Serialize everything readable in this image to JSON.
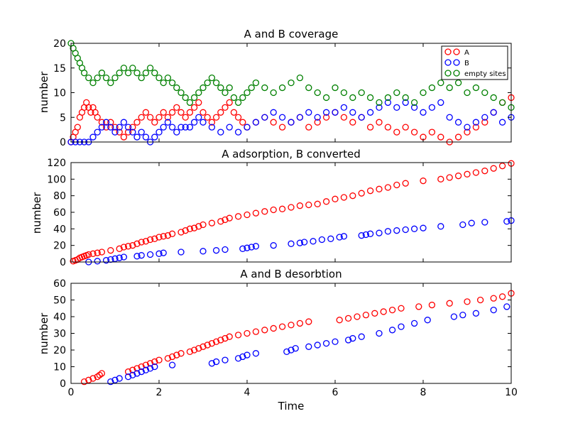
{
  "chart_data": [
    {
      "type": "scatter",
      "title": "A and B coverage",
      "xlabel": "",
      "ylabel": "number",
      "xlim": [
        0,
        10
      ],
      "ylim": [
        0,
        20
      ],
      "xticks": [],
      "yticks": [
        0,
        5,
        10,
        15,
        20
      ],
      "legend": "top-right",
      "series": [
        {
          "name": "A",
          "color": "#ff0000",
          "x": [
            0.0,
            0.05,
            0.1,
            0.15,
            0.2,
            0.25,
            0.3,
            0.35,
            0.4,
            0.45,
            0.5,
            0.55,
            0.6,
            0.7,
            0.8,
            0.9,
            1.0,
            1.1,
            1.2,
            1.3,
            1.4,
            1.5,
            1.6,
            1.7,
            1.8,
            1.9,
            2.0,
            2.1,
            2.2,
            2.3,
            2.4,
            2.5,
            2.6,
            2.7,
            2.8,
            2.9,
            3.0,
            3.1,
            3.2,
            3.3,
            3.4,
            3.5,
            3.6,
            3.7,
            3.8,
            3.9,
            4.0,
            4.2,
            4.4,
            4.6,
            4.8,
            5.0,
            5.2,
            5.4,
            5.6,
            5.8,
            6.0,
            6.2,
            6.4,
            6.6,
            6.8,
            7.0,
            7.2,
            7.4,
            7.6,
            7.8,
            8.0,
            8.2,
            8.4,
            8.6,
            8.8,
            9.0,
            9.2,
            9.4,
            9.6,
            9.8,
            10.0
          ],
          "y": [
            0,
            1,
            2,
            3,
            5,
            6,
            7,
            8,
            7,
            6,
            7,
            6,
            5,
            4,
            3,
            4,
            3,
            2,
            1,
            2,
            3,
            4,
            5,
            6,
            5,
            4,
            5,
            6,
            5,
            6,
            7,
            6,
            5,
            6,
            7,
            8,
            6,
            5,
            4,
            5,
            6,
            7,
            8,
            6,
            5,
            4,
            3,
            4,
            5,
            4,
            3,
            4,
            5,
            3,
            4,
            5,
            6,
            5,
            4,
            5,
            3,
            4,
            3,
            2,
            3,
            2,
            1,
            2,
            1,
            0,
            1,
            2,
            3,
            4,
            6,
            8,
            9
          ]
        },
        {
          "name": "B",
          "color": "#0000ff",
          "x": [
            0.0,
            0.1,
            0.2,
            0.3,
            0.4,
            0.5,
            0.6,
            0.7,
            0.8,
            0.9,
            1.0,
            1.1,
            1.2,
            1.3,
            1.4,
            1.5,
            1.6,
            1.7,
            1.8,
            1.9,
            2.0,
            2.1,
            2.2,
            2.3,
            2.4,
            2.5,
            2.6,
            2.7,
            2.8,
            2.9,
            3.0,
            3.2,
            3.4,
            3.6,
            3.8,
            4.0,
            4.2,
            4.4,
            4.6,
            4.8,
            5.0,
            5.2,
            5.4,
            5.6,
            5.8,
            6.0,
            6.2,
            6.4,
            6.6,
            6.8,
            7.0,
            7.2,
            7.4,
            7.6,
            7.8,
            8.0,
            8.2,
            8.4,
            8.6,
            8.8,
            9.0,
            9.2,
            9.4,
            9.6,
            9.8,
            10.0
          ],
          "y": [
            0,
            0,
            0,
            0,
            0,
            1,
            2,
            3,
            4,
            3,
            2,
            3,
            4,
            3,
            2,
            1,
            2,
            1,
            0,
            1,
            2,
            3,
            4,
            3,
            2,
            3,
            3,
            3,
            4,
            5,
            4,
            3,
            2,
            3,
            2,
            3,
            4,
            5,
            6,
            5,
            4,
            5,
            6,
            5,
            6,
            6,
            7,
            6,
            5,
            6,
            7,
            8,
            7,
            8,
            7,
            6,
            7,
            8,
            5,
            4,
            3,
            4,
            5,
            6,
            4,
            5
          ]
        },
        {
          "name": "empty sites",
          "color": "#008000",
          "x": [
            0.0,
            0.05,
            0.1,
            0.15,
            0.2,
            0.25,
            0.3,
            0.4,
            0.5,
            0.6,
            0.7,
            0.8,
            0.9,
            1.0,
            1.1,
            1.2,
            1.3,
            1.4,
            1.5,
            1.6,
            1.7,
            1.8,
            1.9,
            2.0,
            2.1,
            2.2,
            2.3,
            2.4,
            2.5,
            2.6,
            2.7,
            2.8,
            2.9,
            3.0,
            3.1,
            3.2,
            3.3,
            3.4,
            3.5,
            3.6,
            3.7,
            3.8,
            3.9,
            4.0,
            4.1,
            4.2,
            4.4,
            4.6,
            4.8,
            5.0,
            5.2,
            5.4,
            5.6,
            5.8,
            6.0,
            6.2,
            6.4,
            6.6,
            6.8,
            7.0,
            7.2,
            7.4,
            7.6,
            7.8,
            8.0,
            8.2,
            8.4,
            8.6,
            8.8,
            9.0,
            9.2,
            9.4,
            9.6,
            9.8,
            10.0
          ],
          "y": [
            20,
            19,
            18,
            17,
            16,
            15,
            14,
            13,
            12,
            13,
            14,
            13,
            12,
            13,
            14,
            15,
            14,
            15,
            14,
            13,
            14,
            15,
            14,
            13,
            12,
            13,
            12,
            11,
            10,
            9,
            8,
            9,
            10,
            11,
            12,
            13,
            12,
            11,
            10,
            11,
            9,
            8,
            9,
            10,
            11,
            12,
            11,
            10,
            11,
            12,
            13,
            11,
            10,
            9,
            11,
            10,
            9,
            10,
            9,
            8,
            9,
            10,
            9,
            8,
            10,
            11,
            12,
            11,
            12,
            10,
            11,
            10,
            9,
            8,
            7
          ]
        }
      ]
    },
    {
      "type": "scatter",
      "title": "A adsorption, B converted",
      "xlabel": "",
      "ylabel": "number",
      "xlim": [
        0,
        10
      ],
      "ylim": [
        0,
        120
      ],
      "xticks": [],
      "yticks": [
        0,
        20,
        40,
        60,
        80,
        100,
        120
      ],
      "series": [
        {
          "name": "A",
          "color": "#ff0000",
          "x": [
            0.05,
            0.1,
            0.15,
            0.2,
            0.25,
            0.3,
            0.35,
            0.4,
            0.5,
            0.6,
            0.7,
            0.9,
            1.1,
            1.2,
            1.3,
            1.4,
            1.5,
            1.6,
            1.7,
            1.8,
            1.9,
            2.0,
            2.1,
            2.2,
            2.3,
            2.5,
            2.6,
            2.7,
            2.8,
            2.9,
            3.0,
            3.2,
            3.4,
            3.5,
            3.6,
            3.8,
            4.0,
            4.2,
            4.4,
            4.6,
            4.8,
            5.0,
            5.2,
            5.4,
            5.6,
            5.8,
            6.0,
            6.2,
            6.4,
            6.6,
            6.8,
            7.0,
            7.2,
            7.4,
            7.6,
            8.0,
            8.4,
            8.6,
            8.8,
            9.0,
            9.2,
            9.4,
            9.6,
            9.8,
            10.0
          ],
          "y": [
            1,
            2,
            3,
            5,
            6,
            7,
            8,
            9,
            10,
            11,
            12,
            14,
            16,
            18,
            19,
            20,
            22,
            24,
            25,
            27,
            28,
            30,
            31,
            32,
            34,
            36,
            38,
            40,
            41,
            43,
            45,
            47,
            49,
            51,
            53,
            55,
            57,
            59,
            61,
            63,
            64,
            66,
            68,
            69,
            70,
            73,
            76,
            78,
            80,
            83,
            86,
            88,
            90,
            93,
            95,
            98,
            100,
            102,
            104,
            106,
            108,
            110,
            113,
            116,
            119
          ]
        },
        {
          "name": "B",
          "color": "#0000ff",
          "x": [
            0.4,
            0.6,
            0.8,
            0.9,
            1.0,
            1.1,
            1.2,
            1.5,
            1.6,
            1.8,
            2.0,
            2.1,
            2.5,
            3.0,
            3.3,
            3.5,
            3.9,
            4.0,
            4.1,
            4.2,
            4.6,
            5.0,
            5.2,
            5.3,
            5.5,
            5.7,
            5.9,
            6.1,
            6.2,
            6.6,
            6.7,
            6.8,
            7.0,
            7.2,
            7.4,
            7.6,
            7.8,
            8.0,
            8.4,
            8.9,
            9.1,
            9.4,
            9.9,
            10.0
          ],
          "y": [
            0,
            1,
            2,
            3,
            4,
            5,
            6,
            7,
            8,
            9,
            10,
            11,
            12,
            13,
            14,
            15,
            16,
            17,
            18,
            19,
            20,
            22,
            23,
            24,
            25,
            27,
            28,
            30,
            31,
            32,
            33,
            34,
            35,
            37,
            38,
            39,
            40,
            41,
            43,
            45,
            47,
            48,
            49,
            50
          ]
        }
      ]
    },
    {
      "type": "scatter",
      "title": "A and B desorbtion",
      "xlabel": "Time",
      "ylabel": "number",
      "xlim": [
        0,
        10
      ],
      "ylim": [
        0,
        60
      ],
      "xticks": [
        0,
        2,
        4,
        6,
        8,
        10
      ],
      "yticks": [
        0,
        10,
        20,
        30,
        40,
        50,
        60
      ],
      "series": [
        {
          "name": "A",
          "color": "#ff0000",
          "x": [
            0.3,
            0.4,
            0.5,
            0.6,
            0.65,
            0.7,
            1.3,
            1.4,
            1.5,
            1.6,
            1.7,
            1.8,
            1.9,
            2.0,
            2.2,
            2.3,
            2.4,
            2.5,
            2.7,
            2.8,
            2.9,
            3.0,
            3.1,
            3.2,
            3.3,
            3.4,
            3.5,
            3.6,
            3.8,
            4.0,
            4.2,
            4.4,
            4.6,
            4.8,
            5.0,
            5.2,
            5.4,
            6.1,
            6.3,
            6.5,
            6.7,
            6.9,
            7.1,
            7.3,
            7.5,
            7.9,
            8.2,
            8.6,
            9.0,
            9.3,
            9.6,
            9.8,
            10.0
          ],
          "y": [
            1,
            2,
            3,
            4,
            5,
            6,
            7,
            8,
            9,
            10,
            11,
            12,
            13,
            14,
            15,
            16,
            17,
            18,
            19,
            20,
            21,
            22,
            23,
            24,
            25,
            26,
            27,
            28,
            29,
            30,
            31,
            32,
            33,
            34,
            35,
            36,
            37,
            38,
            39,
            40,
            41,
            42,
            43,
            44,
            45,
            46,
            47,
            48,
            49,
            50,
            51,
            52,
            54
          ]
        },
        {
          "name": "B",
          "color": "#0000ff",
          "x": [
            0.9,
            1.0,
            1.1,
            1.3,
            1.4,
            1.5,
            1.6,
            1.7,
            1.8,
            1.9,
            2.3,
            3.2,
            3.3,
            3.5,
            3.8,
            3.9,
            4.0,
            4.2,
            4.9,
            5.0,
            5.1,
            5.4,
            5.6,
            5.8,
            6.0,
            6.3,
            6.4,
            6.6,
            7.0,
            7.3,
            7.5,
            7.8,
            8.1,
            8.7,
            8.9,
            9.2,
            9.6,
            9.9
          ],
          "y": [
            1,
            2,
            3,
            4,
            5,
            6,
            7,
            8,
            9,
            10,
            11,
            12,
            13,
            14,
            15,
            16,
            17,
            18,
            19,
            20,
            21,
            22,
            23,
            24,
            25,
            26,
            27,
            28,
            30,
            32,
            34,
            36,
            38,
            40,
            41,
            42,
            44,
            46
          ]
        }
      ]
    }
  ]
}
